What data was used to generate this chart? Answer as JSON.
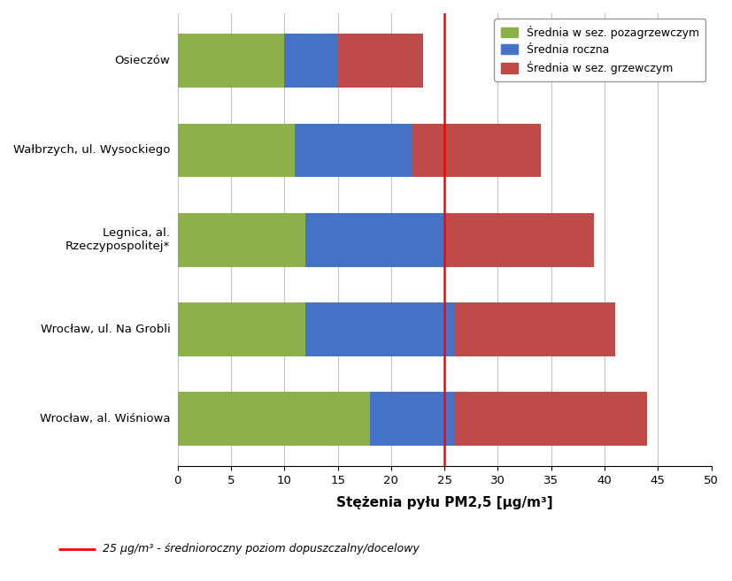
{
  "stations": [
    "Wrocław, al. Wiśniowa",
    "Wrocław, ul. Na Grobli",
    "Legnica, al.\nRzeczypospolitej*",
    "Wałbrzych, ul. Wysockiego",
    "Osieczów"
  ],
  "green_values": [
    18,
    12,
    12,
    11,
    10
  ],
  "blue_increments": [
    8,
    14,
    13,
    11,
    5
  ],
  "red_increments": [
    18,
    15,
    14,
    12,
    8
  ],
  "green_color": "#8DB04A",
  "blue_color": "#4472C4",
  "red_color": "#BE4B48",
  "reference_line_x": 25,
  "reference_line_color": "#FF0000",
  "xlim": [
    0,
    50
  ],
  "xticks": [
    0,
    5,
    10,
    15,
    20,
    25,
    30,
    35,
    40,
    45,
    50
  ],
  "xlabel": "Stężenia pyłu PM2,5 [μg/m³]",
  "legend_labels": [
    "Średnia w sez. pozagrzewczym",
    "Średnia roczna",
    "Średnia w sez. grzewczym"
  ],
  "footnote": "25 μg/m³ - średnioroczny poziom dopuszczalny/docelowy",
  "bar_height": 0.6,
  "background_color": "#FFFFFF",
  "grid_color": "#C0C0C0"
}
